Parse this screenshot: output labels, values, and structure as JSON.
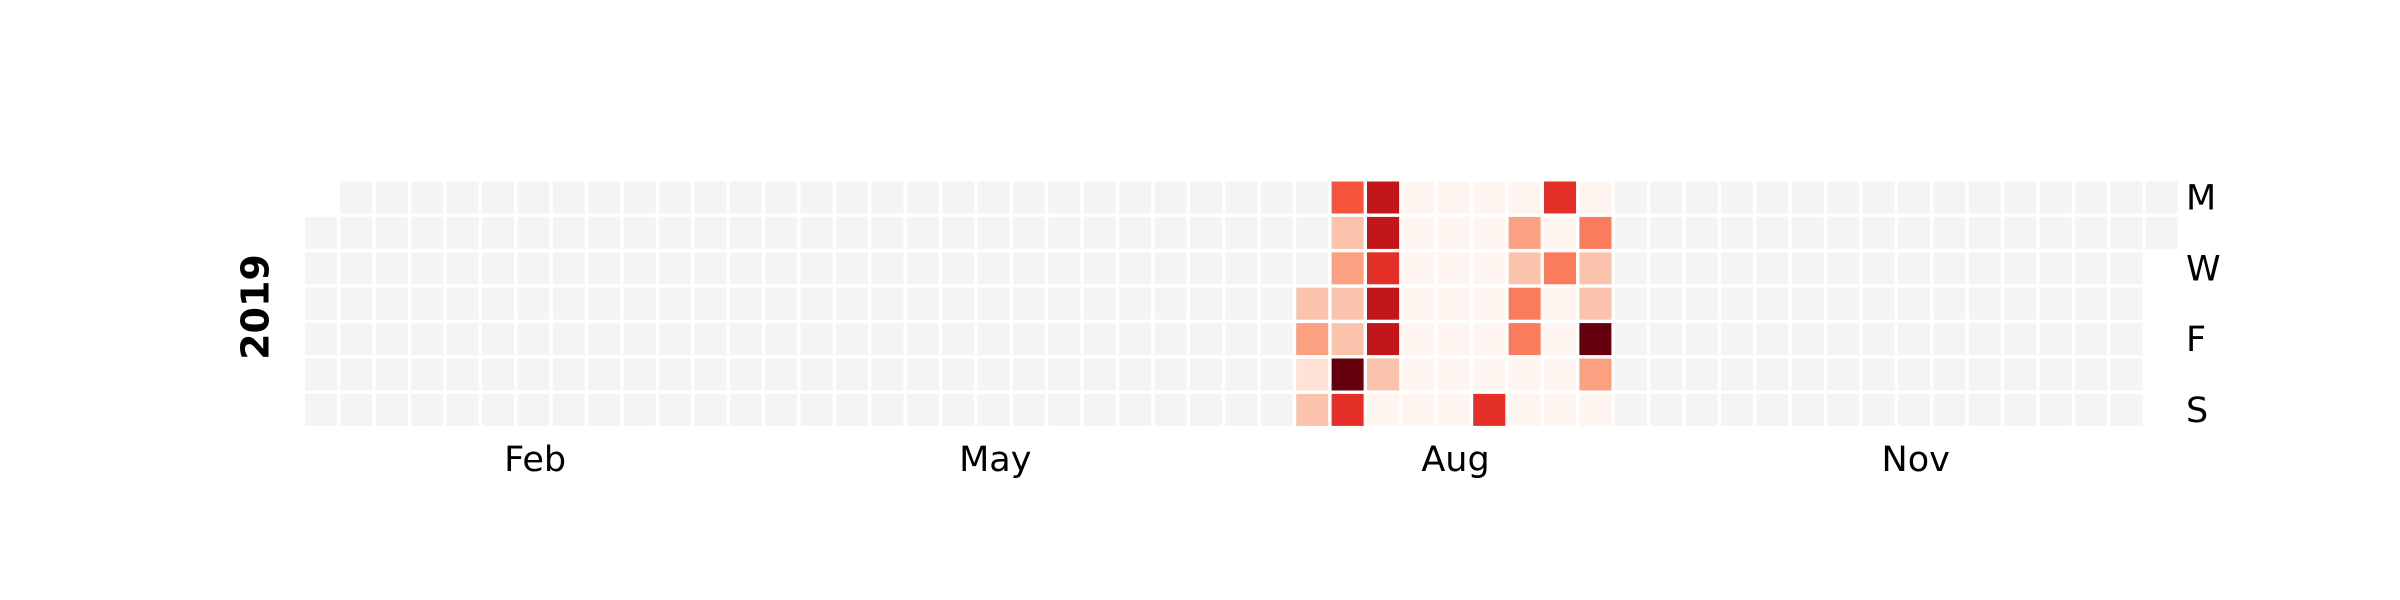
{
  "chart_data": {
    "type": "calendar_heatmap",
    "year": "2019",
    "month_labels": [
      "Feb",
      "May",
      "Aug",
      "Nov"
    ],
    "day_labels": [
      "M",
      "W",
      "F",
      "S"
    ],
    "colors": [
      "#fff5f0",
      "#fee0d2",
      "#fcbba1",
      "#fc9272",
      "#fb6a4a",
      "#ef3b2c",
      "#cb181d",
      "#a50f15",
      "#67000d"
    ],
    "missing_color": "#f4f4f4",
    "values": [
      null,
      null,
      null,
      null,
      null,
      null,
      null,
      null,
      null,
      null,
      null,
      null,
      null,
      null,
      null,
      null,
      null,
      null,
      null,
      null,
      null,
      null,
      null,
      null,
      null,
      null,
      null,
      null,
      null,
      null,
      null,
      null,
      null,
      null,
      null,
      null,
      null,
      null,
      null,
      null,
      null,
      null,
      null,
      null,
      null,
      null,
      null,
      null,
      null,
      null,
      null,
      null,
      null,
      null,
      null,
      null,
      null,
      null,
      null,
      null,
      null,
      null,
      null,
      null,
      null,
      null,
      null,
      null,
      null,
      null,
      null,
      null,
      null,
      null,
      null,
      null,
      null,
      null,
      null,
      null,
      null,
      null,
      null,
      null,
      null,
      null,
      null,
      null,
      null,
      null,
      null,
      null,
      null,
      null,
      null,
      null,
      null,
      null,
      null,
      null,
      null,
      null,
      null,
      null,
      null,
      null,
      null,
      null,
      null,
      null,
      null,
      null,
      null,
      null,
      null,
      null,
      null,
      null,
      null,
      null,
      null,
      null,
      null,
      null,
      null,
      null,
      null,
      null,
      null,
      null,
      null,
      null,
      null,
      null,
      null,
      null,
      null,
      null,
      null,
      null,
      null,
      null,
      null,
      null,
      null,
      null,
      null,
      null,
      null,
      null,
      null,
      null,
      null,
      null,
      null,
      null,
      null,
      null,
      null,
      null,
      null,
      null,
      null,
      null,
      null,
      null,
      null,
      null,
      null,
      null,
      null,
      null,
      null,
      null,
      null,
      null,
      null,
      null,
      null,
      null,
      null,
      null,
      null,
      null,
      null,
      null,
      null,
      null,
      null,
      null,
      null,
      null,
      null,
      null,
      null,
      null,
      null,
      null,
      3,
      4,
      2,
      3,
      6,
      3,
      4,
      3,
      3,
      10,
      7,
      8,
      8,
      7,
      8,
      8,
      3,
      1,
      1,
      1,
      1,
      1,
      1,
      1,
      1,
      1,
      1,
      1,
      1,
      1,
      1,
      1,
      1,
      1,
      1,
      1,
      1,
      1,
      7,
      1,
      4,
      3,
      5,
      5,
      1,
      1,
      7,
      1,
      5,
      1,
      1,
      1,
      1,
      1,
      5,
      3,
      3,
      10,
      4,
      1,
      null,
      null,
      null,
      null,
      null,
      null,
      null,
      null,
      null,
      null,
      null,
      null,
      null,
      null,
      null,
      null,
      null,
      null,
      null,
      null,
      null,
      null,
      null,
      null,
      null,
      null,
      null,
      null,
      null,
      null,
      null,
      null,
      null,
      null,
      null,
      null,
      null,
      null,
      null,
      null,
      null,
      null,
      null,
      null,
      null,
      null,
      null,
      null,
      null,
      null,
      null,
      null,
      null,
      null,
      null,
      null,
      null,
      null,
      null,
      null,
      null,
      null,
      null,
      null,
      null,
      null,
      null,
      null,
      null,
      null,
      null,
      null,
      null,
      null,
      null,
      null,
      null,
      null,
      null,
      null,
      null,
      null,
      null,
      null,
      null,
      null,
      null,
      null,
      null,
      null,
      null,
      null,
      null,
      null,
      null,
      null,
      null,
      null,
      null,
      null,
      null,
      null,
      null,
      null,
      null,
      null,
      null
    ]
  }
}
